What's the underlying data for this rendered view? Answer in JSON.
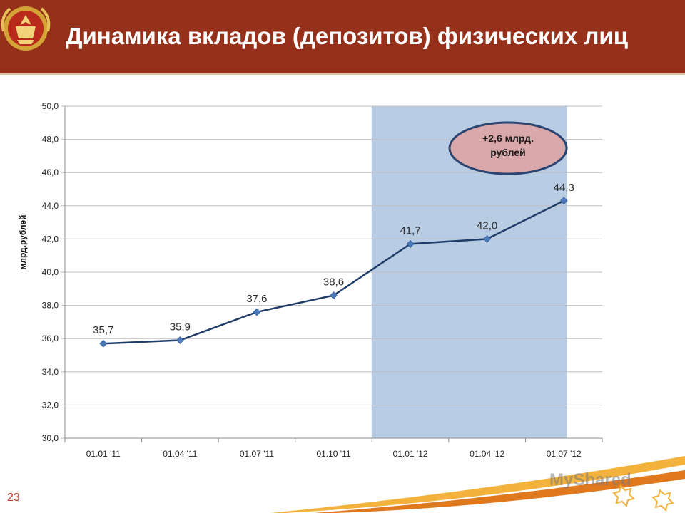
{
  "header": {
    "title": "Динамика вкладов (депозитов) физических лиц"
  },
  "slide_number": "23",
  "watermark": "MyShared",
  "callout": {
    "line1": "+2,6 млрд.",
    "line2": "рублей"
  },
  "colors": {
    "header_bg": "#95311a",
    "line": "#1f3d66",
    "marker": "#4a78b8",
    "highlight": "#b8cce4",
    "callout_fill": "#d8a8ab",
    "callout_stroke": "#2b4470"
  },
  "chart_data": {
    "type": "line",
    "categories": [
      "01.01 '11",
      "01.04 '11",
      "01.07 '11",
      "01.10 '11",
      "01.01 '12",
      "01.04 '12",
      "01.07 '12"
    ],
    "values": [
      35.7,
      35.9,
      37.6,
      38.6,
      41.7,
      42.0,
      44.3
    ],
    "value_labels": [
      "35,7",
      "35,9",
      "37,6",
      "38,6",
      "41,7",
      "42,0",
      "44,3"
    ],
    "ylabel": "млрд.рублей",
    "ylim": [
      30,
      50
    ],
    "yticks": [
      "30,0",
      "32,0",
      "34,0",
      "36,0",
      "38,0",
      "40,0",
      "42,0",
      "44,0",
      "46,0",
      "48,0",
      "50,0"
    ],
    "highlight_categories": [
      "01.01 '12",
      "01.04 '12",
      "01.07 '12"
    ],
    "grid": true,
    "legend": "none"
  }
}
